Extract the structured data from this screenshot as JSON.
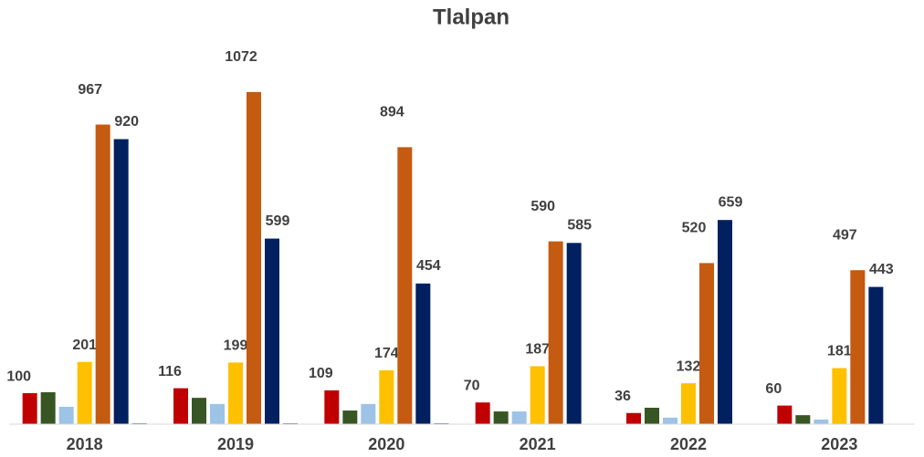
{
  "chart_data": {
    "type": "bar",
    "title": "Tlalpan",
    "categories": [
      "2018",
      "2019",
      "2020",
      "2021",
      "2022",
      "2023"
    ],
    "series": [
      {
        "color": "#c00000",
        "data_labels": true,
        "values": [
          100,
          116,
          109,
          70,
          36,
          60
        ]
      },
      {
        "color": "#375623",
        "data_labels": false,
        "values": [
          103,
          85,
          44,
          41,
          53,
          29
        ]
      },
      {
        "color": "#9dc3e6",
        "data_labels": false,
        "values": [
          56,
          65,
          65,
          41,
          21,
          15
        ]
      },
      {
        "color": "#ffc000",
        "data_labels": true,
        "values": [
          201,
          199,
          174,
          187,
          132,
          181
        ]
      },
      {
        "color": "#c55a11",
        "data_labels": true,
        "values": [
          967,
          1072,
          894,
          590,
          520,
          497
        ]
      },
      {
        "color": "#002060",
        "data_labels": true,
        "values": [
          920,
          599,
          454,
          585,
          659,
          443
        ]
      },
      {
        "color": "#4472c4",
        "data_labels": false,
        "values": [
          3,
          3,
          3,
          0,
          0,
          0
        ]
      }
    ],
    "ylim": [
      0,
      1100
    ],
    "grid": false
  }
}
